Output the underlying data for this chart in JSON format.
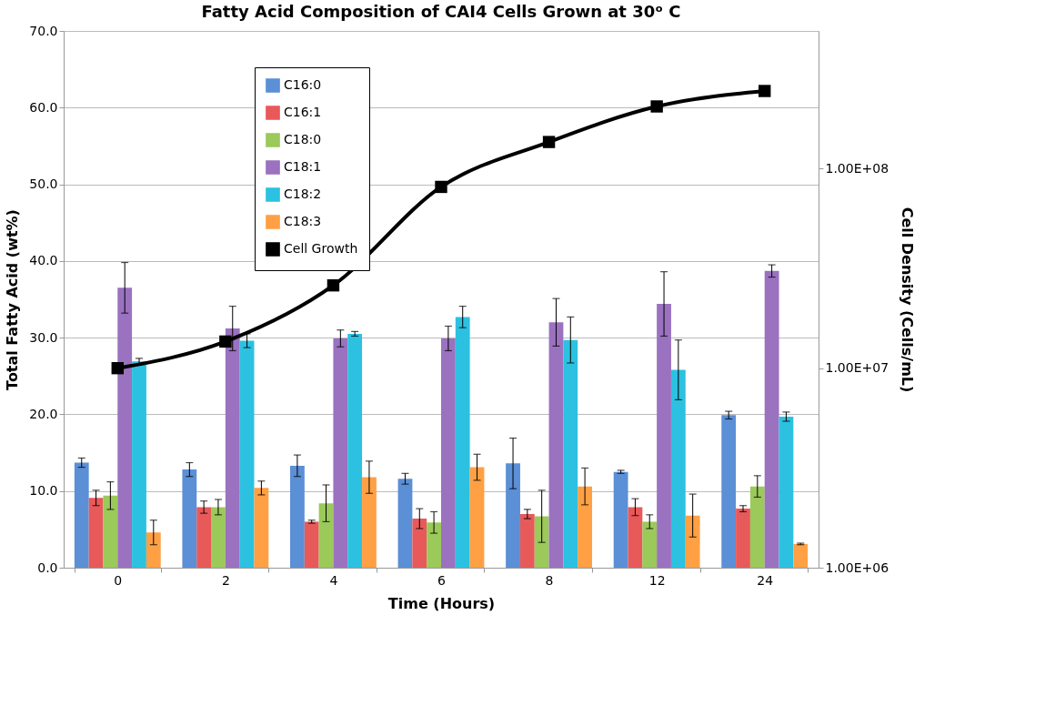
{
  "chart_data": {
    "type": "bar",
    "title": "Fatty Acid Composition of CAI4 Cells Grown at 30ᵒ C",
    "xlabel": "Time (Hours)",
    "ylabel": "Total Fatty Acid (wt%)",
    "y2label": "Cell Density (Cells/mL)",
    "categories": [
      "0",
      "2",
      "4",
      "6",
      "8",
      "12",
      "24"
    ],
    "ylim": [
      0,
      70
    ],
    "yticks": [
      {
        "value": 0,
        "label": "0.0"
      },
      {
        "value": 10,
        "label": "10.0"
      },
      {
        "value": 20,
        "label": "20.0"
      },
      {
        "value": 30,
        "label": "30.0"
      },
      {
        "value": 40,
        "label": "40.0"
      },
      {
        "value": 50,
        "label": "50.0"
      },
      {
        "value": 60,
        "label": "60.0"
      },
      {
        "value": 70,
        "label": "70.0"
      }
    ],
    "y2lim": [
      1000000,
      490000000
    ],
    "y2ticks": [
      {
        "value": 1000000,
        "label": "1.00E+06"
      },
      {
        "value": 10000000,
        "label": "1.00E+07"
      },
      {
        "value": 100000000,
        "label": "1.00E+08"
      }
    ],
    "log": "y2",
    "grid": "y",
    "legend": "top left",
    "series": [
      {
        "name": "C16:0",
        "color": "#5b8fd6",
        "values": [
          13.7,
          12.8,
          13.3,
          11.6,
          13.6,
          12.5,
          19.9
        ],
        "errors": [
          0.6,
          0.9,
          1.4,
          0.7,
          3.3,
          0.2,
          0.5
        ]
      },
      {
        "name": "C16:1",
        "color": "#e8595a",
        "values": [
          9.1,
          7.9,
          6.0,
          6.4,
          7.0,
          7.9,
          7.7
        ],
        "errors": [
          1.0,
          0.8,
          0.2,
          1.3,
          0.6,
          1.1,
          0.4
        ]
      },
      {
        "name": "C18:0",
        "color": "#9bc95a",
        "values": [
          9.4,
          7.9,
          8.4,
          5.9,
          6.7,
          6.0,
          10.6
        ],
        "errors": [
          1.8,
          1.0,
          2.4,
          1.4,
          3.4,
          0.9,
          1.4
        ]
      },
      {
        "name": "C18:1",
        "color": "#9a72c0",
        "values": [
          36.5,
          31.2,
          29.9,
          29.9,
          32.0,
          34.4,
          38.7
        ],
        "errors": [
          3.3,
          2.9,
          1.1,
          1.6,
          3.1,
          4.2,
          0.8
        ]
      },
      {
        "name": "C18:2",
        "color": "#2cc1e0",
        "values": [
          26.9,
          29.6,
          30.5,
          32.7,
          29.7,
          25.8,
          19.7
        ],
        "errors": [
          0.4,
          0.9,
          0.3,
          1.4,
          3.0,
          3.9,
          0.6
        ]
      },
      {
        "name": "C18:3",
        "color": "#ffa044",
        "values": [
          4.6,
          10.4,
          11.8,
          13.1,
          10.6,
          6.8,
          3.1
        ],
        "errors": [
          1.6,
          0.9,
          2.1,
          1.7,
          2.4,
          2.8,
          0.1
        ]
      },
      {
        "name": "Cell Growth",
        "color": "#000000",
        "type": "line",
        "axis": "y2",
        "marker": "square",
        "line_style": "solid",
        "values": [
          10000000,
          13600000,
          26000000,
          81000000,
          136000000,
          205000000,
          245000000
        ]
      }
    ]
  }
}
